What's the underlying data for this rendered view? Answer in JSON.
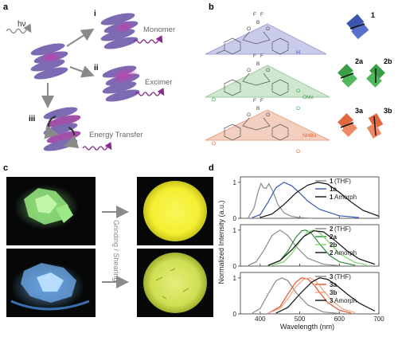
{
  "panels": {
    "a": {
      "label": "a",
      "hv": "hν",
      "pathways": [
        {
          "num": "i",
          "name": "Monomer"
        },
        {
          "num": "ii",
          "name": "Excimer"
        },
        {
          "num": "iii",
          "name": "Energy Transfer"
        }
      ]
    },
    "b": {
      "label": "b",
      "bf": "F",
      "boron": "B",
      "oxygen": "O",
      "substituents": [
        "H",
        "OMe",
        "NHBu"
      ],
      "crystal_labels": [
        "1",
        "2a",
        "2b",
        "3a",
        "3b"
      ],
      "colors": {
        "c1": "#3e55b0",
        "c2": "#3a9e48",
        "c3": "#e0673e"
      }
    },
    "c": {
      "label": "c",
      "arrow_text": "Grinding / Shearing",
      "colors": {
        "green_crystal": "#8fe07a",
        "blue_crystal": "#6aa6e6",
        "yellow_disc": "#f3ef30",
        "green_disc": "#d0e25a"
      }
    },
    "d": {
      "label": "d"
    }
  },
  "chart_data": {
    "type": "line",
    "xlabel": "Wavelength (nm)",
    "ylabel": "Normalized Intensity (a.u.)",
    "xlim": [
      350,
      700
    ],
    "x_ticks": [
      400,
      500,
      600,
      700
    ],
    "ylim": [
      0,
      1.15
    ],
    "y_ticks": [
      0,
      1
    ],
    "subplots": [
      {
        "series": [
          {
            "name_num": "1",
            "name_rest": " (THF)",
            "color": "#8a8a8a",
            "x": [
              370,
              385,
              395,
              402,
              408,
              415,
              422,
              432,
              445,
              460,
              480,
              500,
              530
            ],
            "y": [
              0.02,
              0.3,
              0.75,
              0.97,
              0.85,
              0.83,
              0.96,
              0.75,
              0.38,
              0.15,
              0.05,
              0.02,
              0
            ]
          },
          {
            "name_num": "1a",
            "name_rest": "",
            "color": "#3a56b5",
            "x": [
              380,
              400,
              420,
              440,
              460,
              480,
              500,
              520,
              550,
              600,
              650
            ],
            "y": [
              0.02,
              0.1,
              0.45,
              0.85,
              1.0,
              0.9,
              0.7,
              0.48,
              0.25,
              0.07,
              0.02
            ]
          },
          {
            "name_num": "1",
            "name_rest": " Amorph",
            "color": "#111111",
            "x": [
              400,
              430,
              460,
              490,
              520,
              545,
              570,
              600,
              630,
              660,
              700
            ],
            "y": [
              0.02,
              0.12,
              0.38,
              0.7,
              0.92,
              1.0,
              0.95,
              0.72,
              0.45,
              0.22,
              0.06
            ]
          }
        ]
      },
      {
        "series": [
          {
            "name_num": "2",
            "name_rest": " (THF)",
            "color": "#8a8a8a",
            "x": [
              370,
              390,
              410,
              430,
              450,
              470,
              490,
              520,
              560,
              600
            ],
            "y": [
              0.02,
              0.12,
              0.45,
              0.85,
              1.0,
              0.85,
              0.55,
              0.22,
              0.05,
              0.01
            ]
          },
          {
            "name_num": "2a",
            "name_rest": "",
            "color": "#2e8a3a",
            "x": [
              420,
              450,
              470,
              490,
              505,
              515,
              530,
              550,
              575,
              600,
              640
            ],
            "y": [
              0.02,
              0.15,
              0.42,
              0.8,
              0.98,
              1.0,
              0.9,
              0.62,
              0.3,
              0.12,
              0.02
            ]
          },
          {
            "name_num": "2b",
            "name_rest": "",
            "color": "#7ed46a",
            "x": [
              430,
              460,
              480,
              500,
              520,
              535,
              550,
              570,
              600,
              640,
              670
            ],
            "y": [
              0.02,
              0.12,
              0.35,
              0.68,
              0.95,
              1.0,
              0.93,
              0.7,
              0.35,
              0.1,
              0.03
            ]
          },
          {
            "name_num": "2",
            "name_rest": " Amorph",
            "color": "#111111",
            "x": [
              420,
              450,
              480,
              510,
              535,
              560,
              590,
              620,
              650,
              690
            ],
            "y": [
              0.02,
              0.15,
              0.45,
              0.82,
              0.98,
              0.95,
              0.7,
              0.42,
              0.2,
              0.05
            ]
          }
        ]
      },
      {
        "series": [
          {
            "name_num": "3",
            "name_rest": " (THF)",
            "color": "#8a8a8a",
            "x": [
              380,
              400,
              420,
              440,
              455,
              470,
              490,
              520,
              560,
              600
            ],
            "y": [
              0.02,
              0.15,
              0.55,
              0.92,
              1.0,
              0.92,
              0.6,
              0.25,
              0.05,
              0.01
            ]
          },
          {
            "name_num": "3a",
            "name_rest": "",
            "color": "#e0532e",
            "x": [
              420,
              450,
              470,
              490,
              505,
              520,
              535,
              550,
              570,
              600,
              630
            ],
            "y": [
              0.02,
              0.2,
              0.55,
              0.88,
              1.0,
              0.97,
              0.82,
              0.6,
              0.32,
              0.1,
              0.02
            ]
          },
          {
            "name_num": "3b",
            "name_rest": "",
            "color": "#f2a27a",
            "x": [
              420,
              450,
              470,
              490,
              510,
              525,
              540,
              560,
              580,
              610,
              640
            ],
            "y": [
              0.02,
              0.15,
              0.42,
              0.75,
              0.96,
              1.0,
              0.92,
              0.65,
              0.38,
              0.13,
              0.03
            ]
          },
          {
            "name_num": "3",
            "name_rest": " Amorph",
            "color": "#111111",
            "x": [
              440,
              470,
              500,
              530,
              550,
              570,
              590,
              620,
              650,
              690
            ],
            "y": [
              0.02,
              0.18,
              0.55,
              0.88,
              1.0,
              0.96,
              0.82,
              0.55,
              0.3,
              0.08
            ]
          }
        ]
      }
    ]
  }
}
